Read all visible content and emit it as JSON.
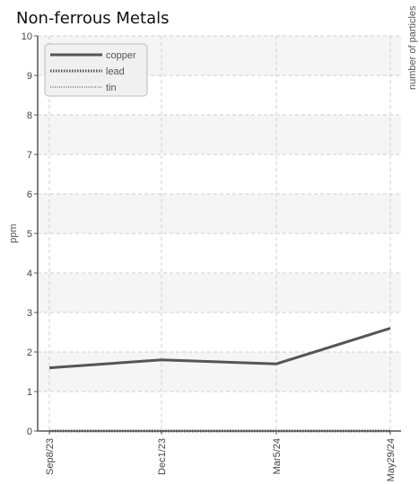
{
  "chart_data": {
    "type": "line",
    "title": "Non-ferrous Metals",
    "ylabel": "ppm",
    "y2label": "number of particles",
    "categories": [
      "Sep8/23",
      "Dec1/23",
      "Mar5/24",
      "May29/24"
    ],
    "ylim": [
      0,
      10
    ],
    "yticks": [
      "0",
      "1",
      "2",
      "3",
      "4",
      "5",
      "6",
      "7",
      "8",
      "9",
      "10"
    ],
    "grid": true,
    "legend_position": "top-left",
    "series": [
      {
        "name": "copper",
        "values": [
          1.6,
          1.8,
          1.7,
          2.6
        ],
        "color": "#555555",
        "style": "solid"
      },
      {
        "name": "lead",
        "values": [
          0,
          0,
          0,
          0
        ],
        "color": "#555555",
        "style": "dotted"
      },
      {
        "name": "tin",
        "values": [
          0,
          0,
          0,
          0
        ],
        "color": "#777777",
        "style": "thin-dotted"
      }
    ]
  }
}
